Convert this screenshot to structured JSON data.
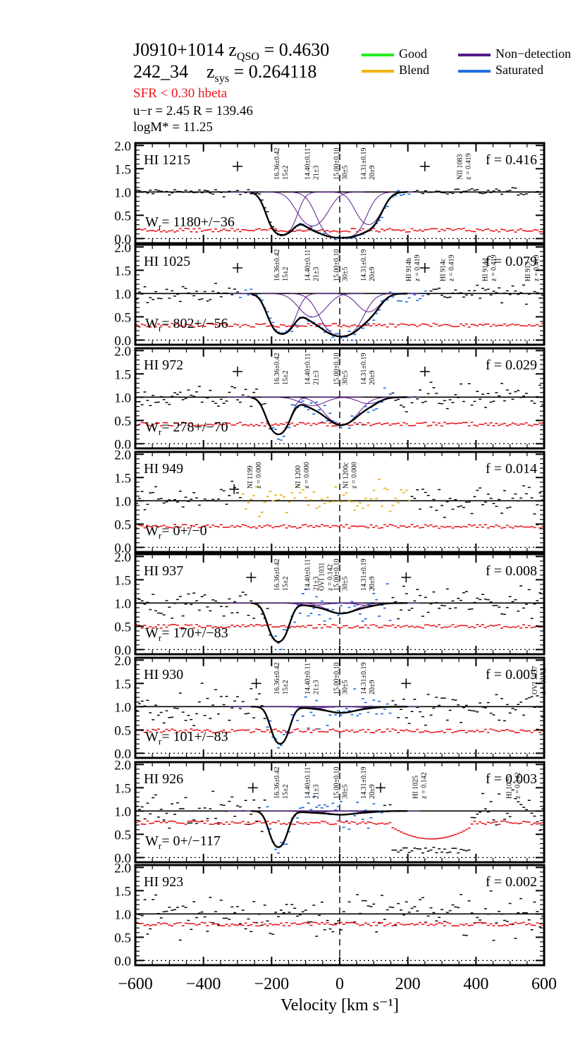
{
  "header": {
    "qso_name": "J0910+1014",
    "zqso_label": "z",
    "zqso_sub": "QSO",
    "zqso_value": " = 0.4630",
    "galaxy_id": "242_34",
    "zsys_label": "z",
    "zsys_sub": "sys",
    "zsys_value": " = 0.264118",
    "sfr": "SFR <  0.30  hbeta",
    "color_radius": "u−r = 2.45   R = 139.46",
    "mass": "logM* =  11.25"
  },
  "legend": [
    {
      "label": "Good",
      "color": "#22ee22"
    },
    {
      "label": "Blend",
      "color": "#f0b400"
    },
    {
      "label": "Non−detection",
      "color": "#5a1a8c"
    },
    {
      "label": "Saturated",
      "color": "#1f6fe0"
    }
  ],
  "chart_data": {
    "type": "line",
    "xlabel": "Velocity [km s⁻¹]",
    "xlim": [
      -600,
      600
    ],
    "x_ticks": [
      -600,
      -400,
      -200,
      0,
      200,
      400,
      600
    ],
    "x_tick_labels": [
      "−600",
      "−400",
      "−200",
      "0",
      "200",
      "400",
      "600"
    ],
    "ylim": [
      -0.1,
      2.05
    ],
    "y_ticks": [
      0.0,
      0.5,
      1.0,
      1.5,
      2.0
    ],
    "y_tick_labels": [
      "0.0",
      "0.5",
      "1.0",
      "1.5",
      "2.0"
    ],
    "component_velocities": [
      -170,
      -80,
      5,
      85
    ],
    "component_labels": [
      [
        "16.36±0.42",
        "15±2"
      ],
      [
        "14.40±0.11",
        "21±3"
      ],
      [
        "15.00±0.10",
        "30±5"
      ],
      [
        "14.31±0.19",
        "20±9"
      ]
    ],
    "colors": {
      "flux": "#000000",
      "error": "#e8141b",
      "saturated": "#1f6fe0",
      "blend": "#e8b013",
      "fit": "#000000",
      "components": "#5a1a8c"
    },
    "panels": [
      {
        "line": "HI 1215",
        "f": "f = 0.416",
        "wr": "= 1180+/−36",
        "wr_symbol": "W",
        "wr_sub": "r",
        "window": [
          -160,
          200
        ],
        "window_type": "saturated",
        "fit_components": [
          [
            -170,
            2.5,
            28
          ],
          [
            -80,
            1.3,
            35
          ],
          [
            5,
            4.0,
            40
          ],
          [
            85,
            1.2,
            30
          ]
        ],
        "err_level": 0.18,
        "noise": 0.08,
        "show_component_labels": true,
        "crosses": [
          [
            -300,
            1.55
          ],
          [
            250,
            1.55
          ]
        ],
        "annotations": [
          {
            "v": 365,
            "line1": "NII 1083",
            "line2": "z = 0.419"
          }
        ]
      },
      {
        "line": "HI 1025",
        "f": "f = 0.079",
        "wr": "= 802+/−56",
        "wr_symbol": "W",
        "wr_sub": "r",
        "window": [
          -300,
          250
        ],
        "window_type": "saturated",
        "fit_components": [
          [
            -170,
            2.0,
            28
          ],
          [
            -80,
            0.7,
            35
          ],
          [
            5,
            2.5,
            40
          ],
          [
            85,
            0.5,
            30
          ]
        ],
        "err_level": 0.32,
        "noise": 0.18,
        "show_component_labels": true,
        "crosses": [
          [
            -300,
            1.55
          ],
          [
            250,
            1.55
          ]
        ],
        "annotations": [
          {
            "v": 215,
            "line1": "HI 914b",
            "line2": "z = 0.419"
          },
          {
            "v": 315,
            "line1": "HI 914c",
            "line2": "z = 0.419"
          },
          {
            "v": 440,
            "line1": "HI 914d",
            "line2": "z = 0.419"
          },
          {
            "v": 565,
            "line1": "HI 913",
            "line2": "z = 0.419"
          }
        ]
      },
      {
        "line": "HI 972",
        "f": "f = 0.029",
        "wr": "= 278+/−70",
        "wr_symbol": "W",
        "wr_sub": "r",
        "window": [
          -200,
          150
        ],
        "window_type": "saturated",
        "fit_components": [
          [
            -180,
            1.6,
            25
          ],
          [
            -80,
            0.2,
            35
          ],
          [
            5,
            0.9,
            40
          ],
          [
            85,
            0.15,
            30
          ]
        ],
        "err_level": 0.42,
        "noise": 0.28,
        "show_component_labels": true,
        "crosses": [
          [
            -300,
            1.55
          ],
          [
            250,
            1.55
          ]
        ],
        "annotations": []
      },
      {
        "line": "HI 949",
        "f": "f = 0.014",
        "wr": "= 0+/−0",
        "wr_symbol": "W",
        "wr_sub": "r",
        "window": [
          -290,
          200
        ],
        "window_type": "blend",
        "fit_components": [],
        "err_level": 0.45,
        "noise": 0.35,
        "show_component_labels": false,
        "crosses": [
          [
            -310,
            1.25
          ]
        ],
        "annotations": [
          {
            "v": -250,
            "line1": "NI 1199",
            "line2": "z = 0.000"
          },
          {
            "v": -110,
            "line1": "NI 1200",
            "line2": "z = 0.000"
          },
          {
            "v": 30,
            "line1": "NI 1200c",
            "line2": "z = 0.000"
          }
        ]
      },
      {
        "line": "HI 937",
        "f": "f = 0.008",
        "wr": "= 170+/−83",
        "wr_symbol": "W",
        "wr_sub": "r",
        "window": [
          -200,
          150
        ],
        "window_type": "saturated",
        "fit_components": [
          [
            -180,
            1.8,
            22
          ],
          [
            -80,
            0.05,
            35
          ],
          [
            5,
            0.25,
            40
          ],
          [
            85,
            0.05,
            30
          ]
        ],
        "err_level": 0.5,
        "noise": 0.38,
        "show_component_labels": true,
        "crosses": [
          [
            -260,
            1.55
          ],
          [
            195,
            1.55
          ]
        ],
        "annotations": [
          {
            "v": -40,
            "line1": "OVI 1031",
            "line2": "z = 0.142"
          }
        ]
      },
      {
        "line": "HI 930",
        "f": "f = 0.005",
        "wr": "= 101+/−83",
        "wr_symbol": "W",
        "wr_sub": "r",
        "window": [
          -220,
          150
        ],
        "window_type": "saturated",
        "fit_components": [
          [
            -175,
            1.6,
            20
          ],
          [
            -80,
            0.03,
            35
          ],
          [
            5,
            0.14,
            40
          ],
          [
            85,
            0.02,
            30
          ]
        ],
        "err_level": 0.48,
        "noise": 0.35,
        "show_component_labels": true,
        "crosses": [
          [
            -245,
            1.5
          ],
          [
            195,
            1.5
          ]
        ],
        "annotations": [
          {
            "v": 585,
            "line1": "OVI 1037",
            "line2": "z = 0.142"
          }
        ]
      },
      {
        "line": "HI 926",
        "f": "f = 0.003",
        "wr": "= 0+/−117",
        "wr_symbol": "W",
        "wr_sub": "r",
        "window": [
          -220,
          120
        ],
        "window_type": "saturated",
        "fit_components": [
          [
            -180,
            1.5,
            20
          ],
          [
            -80,
            0.03,
            35
          ],
          [
            5,
            0.08,
            40
          ],
          [
            85,
            0.02,
            30
          ]
        ],
        "err_level": 0.75,
        "noise": 0.4,
        "show_component_labels": true,
        "crosses": [
          [
            -255,
            1.5
          ],
          [
            120,
            1.5
          ]
        ],
        "annotations": [
          {
            "v": 235,
            "line1": "HI 1025",
            "line2": "z = 0.142"
          },
          {
            "v": 510,
            "line1": "HI 1025",
            "line2": "z = 0.142"
          }
        ]
      },
      {
        "line": "HI 923",
        "f": "f = 0.002",
        "wr": "",
        "wr_symbol": "",
        "wr_sub": "",
        "window": null,
        "window_type": null,
        "fit_components": [],
        "err_level": 0.78,
        "noise": 0.45,
        "show_component_labels": false,
        "crosses": [],
        "annotations": []
      }
    ]
  }
}
